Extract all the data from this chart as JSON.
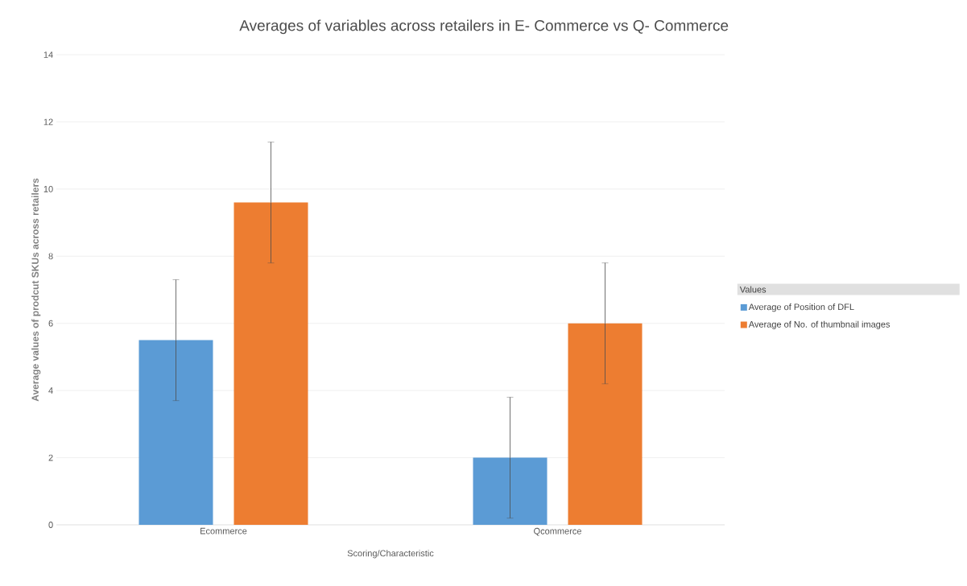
{
  "chart_data": {
    "type": "bar",
    "title": "Averages of variables across retailers in E- Commerce vs Q- Commerce",
    "xlabel": "Scoring/Characteristic",
    "ylabel": "Average values of prodcut SKUs across retailers",
    "categories": [
      "Ecommerce",
      "Qcommerce"
    ],
    "series": [
      {
        "name": "Average of Position of DFL",
        "color": "#5b9bd5",
        "values": [
          5.5,
          2.0
        ],
        "errors": [
          1.8,
          1.8
        ]
      },
      {
        "name": "Average of No. of thumbnail images",
        "color": "#ed7d31",
        "values": [
          9.6,
          6.0
        ],
        "errors": [
          1.8,
          1.8
        ]
      }
    ],
    "ylim": [
      0,
      14
    ],
    "yticks": [
      0,
      2,
      4,
      6,
      8,
      10,
      12,
      14
    ],
    "grid": "y",
    "legend": "right",
    "legend_title": "Values"
  }
}
